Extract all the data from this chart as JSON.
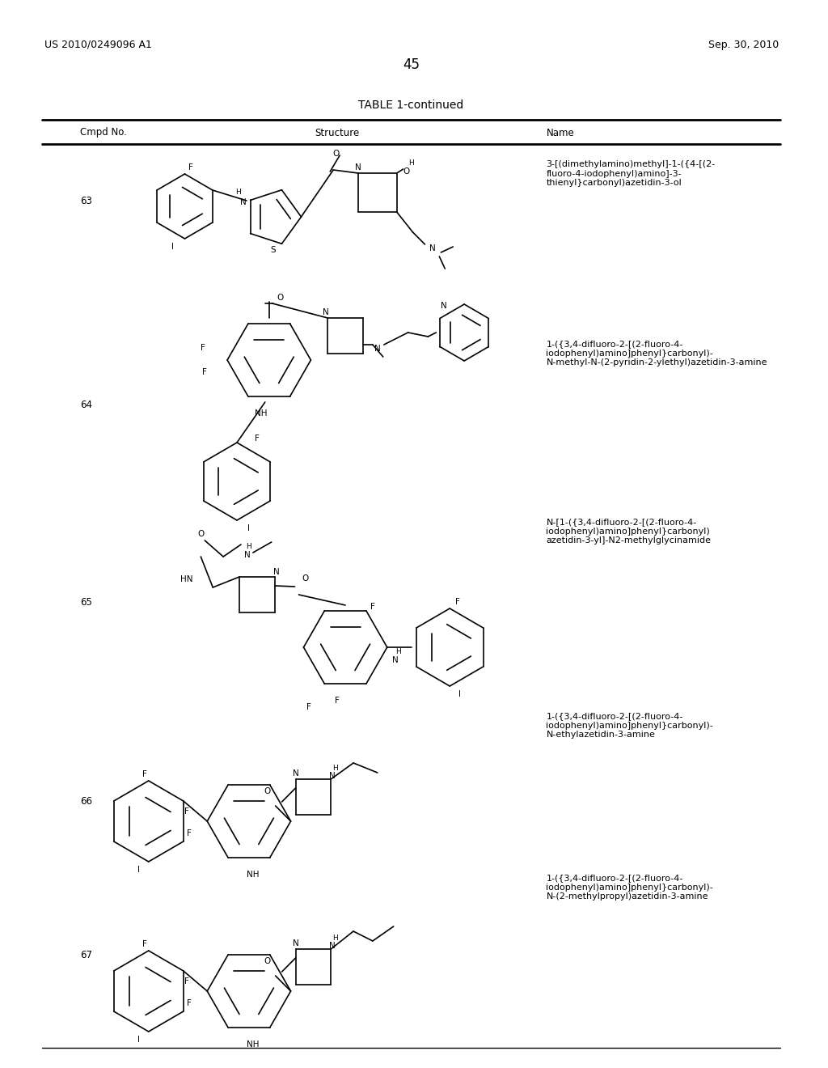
{
  "page_header_left": "US 2010/0249096 A1",
  "page_header_right": "Sep. 30, 2010",
  "page_number": "45",
  "table_title": "TABLE 1-continued",
  "col_headers": [
    "Cmpd No.",
    "Structure",
    "Name"
  ],
  "background_color": "#ffffff",
  "text_color": "#000000",
  "rows": [
    {
      "cmpd_no": "63",
      "name": "3-[(dimethylamino)methyl]-1-({4-[(2-\nfluoro-4-iodophenyl)amino]-3-\nthienyl}carbonyl)azetidin-3-ol"
    },
    {
      "cmpd_no": "64",
      "name": "1-({3,4-difluoro-2-[(2-fluoro-4-\niodophenyl)amino]phenyl}carbonyl)-\nN-methyl-N-(2-pyridin-2-ylethyl)azetidin-3-amine"
    },
    {
      "cmpd_no": "65",
      "name": "N-[1-({3,4-difluoro-2-[(2-fluoro-4-\niodophenyl)amino]phenyl}carbonyl)\nazetidin-3-yl]-N2-methylglycinamide"
    },
    {
      "cmpd_no": "66",
      "name": "1-({3,4-difluoro-2-[(2-fluoro-4-\niodophenyl)amino]phenyl}carbonyl)-\nN-ethylazetidin-3-amine"
    },
    {
      "cmpd_no": "67",
      "name": "1-({3,4-difluoro-2-[(2-fluoro-4-\niodophenyl)amino]phenyl}carbonyl)-\nN-(2-methylpropyl)azetidin-3-amine"
    }
  ]
}
